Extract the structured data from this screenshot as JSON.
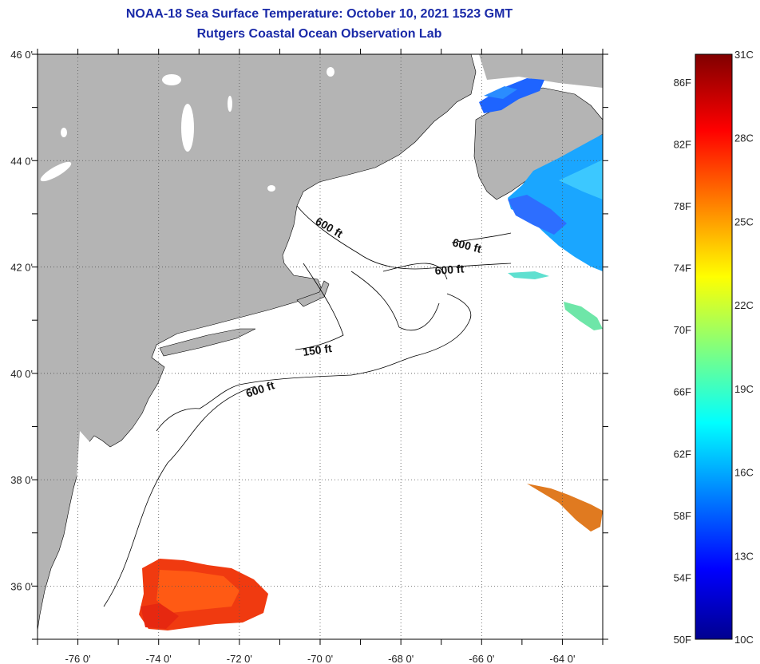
{
  "title": {
    "line1": "NOAA-18 Sea Surface Temperature:  October 10, 2021 1523 GMT",
    "line2": "Rutgers Coastal Ocean Observation Lab"
  },
  "map": {
    "lon_range": [
      -77,
      -63
    ],
    "lat_range": [
      35,
      46
    ],
    "lon_ticks": [
      {
        "value": -76,
        "label": "-76 0'"
      },
      {
        "value": -74,
        "label": "-74 0'"
      },
      {
        "value": -72,
        "label": "-72 0'"
      },
      {
        "value": -70,
        "label": "-70 0'"
      },
      {
        "value": -68,
        "label": "-68 0'"
      },
      {
        "value": -66,
        "label": "-66 0'"
      },
      {
        "value": -64,
        "label": "-64 0'"
      }
    ],
    "lat_ticks": [
      {
        "value": 46,
        "label": "46 0'"
      },
      {
        "value": 44,
        "label": "44 0'"
      },
      {
        "value": 42,
        "label": "42 0'"
      },
      {
        "value": 40,
        "label": "40 0'"
      },
      {
        "value": 38,
        "label": "38 0'"
      },
      {
        "value": 36,
        "label": "36 0'"
      }
    ],
    "depth_labels": [
      {
        "text": "600 ft"
      },
      {
        "text": "600 ft"
      },
      {
        "text": "600 ft"
      },
      {
        "text": "150 ft"
      },
      {
        "text": "600 ft"
      }
    ],
    "colors": {
      "land": "#b4b4b4",
      "ocean": "#ffffff",
      "grid": "#555555"
    }
  },
  "colorbar": {
    "min_c": 10,
    "max_c": 31,
    "celsius_labels": [
      "31C",
      "28C",
      "25C",
      "22C",
      "19C",
      "16C",
      "13C",
      "10C"
    ],
    "fahrenheit_labels": [
      "86F",
      "82F",
      "78F",
      "74F",
      "70F",
      "66F",
      "62F",
      "58F",
      "54F",
      "50F"
    ]
  }
}
